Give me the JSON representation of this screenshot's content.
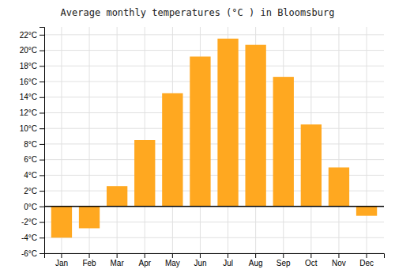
{
  "chart_data": {
    "type": "bar",
    "title": "Average monthly temperatures (°C ) in Bloomsburg",
    "categories": [
      "Jan",
      "Feb",
      "Mar",
      "Apr",
      "May",
      "Jun",
      "Jul",
      "Aug",
      "Sep",
      "Oct",
      "Nov",
      "Dec"
    ],
    "values": [
      -4.0,
      -2.8,
      2.6,
      8.5,
      14.5,
      19.2,
      21.5,
      20.7,
      16.6,
      10.5,
      5.0,
      -1.2
    ],
    "color": "#FFA820",
    "ylim": [
      -6,
      23
    ],
    "yticks": [
      {
        "value": -6,
        "label": "-6°C"
      },
      {
        "value": -4,
        "label": "-4°C"
      },
      {
        "value": -2,
        "label": "-2°C"
      },
      {
        "value": 0,
        "label": "0°C"
      },
      {
        "value": 2,
        "label": "2°C"
      },
      {
        "value": 4,
        "label": "4°C"
      },
      {
        "value": 6,
        "label": "6°C"
      },
      {
        "value": 8,
        "label": "8°C"
      },
      {
        "value": 10,
        "label": "10°C"
      },
      {
        "value": 12,
        "label": "12°C"
      },
      {
        "value": 14,
        "label": "14°C"
      },
      {
        "value": 16,
        "label": "16°C"
      },
      {
        "value": 18,
        "label": "18°C"
      },
      {
        "value": 20,
        "label": "20°C"
      },
      {
        "value": 22,
        "label": "22°C"
      }
    ],
    "grid": true
  }
}
